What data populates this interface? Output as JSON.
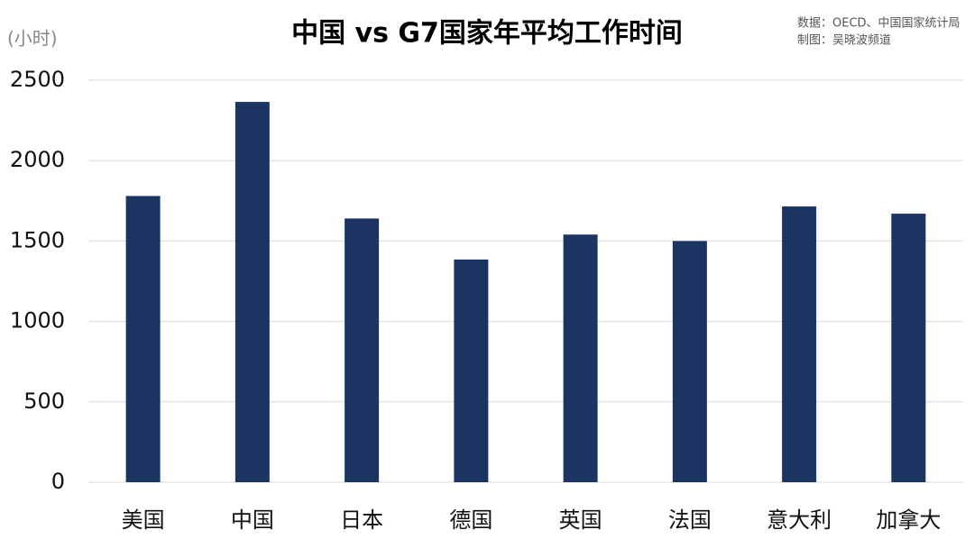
{
  "chart_data": {
    "type": "bar",
    "title": "中国 vs G7国家年平均工作时间",
    "y_label": "(小时)",
    "source": [
      "数据：OECD、中国国家统计局",
      "制图：吴晓波频道"
    ],
    "categories": [
      "美国",
      "中国",
      "日本",
      "德国",
      "英国",
      "法国",
      "意大利",
      "加拿大"
    ],
    "values": [
      1780,
      2365,
      1640,
      1385,
      1540,
      1500,
      1715,
      1670
    ],
    "color": "#1c3461",
    "ylim": [
      0,
      2500
    ],
    "yticks": [
      0,
      500,
      1000,
      1500,
      2000,
      2500
    ],
    "grid": true
  }
}
